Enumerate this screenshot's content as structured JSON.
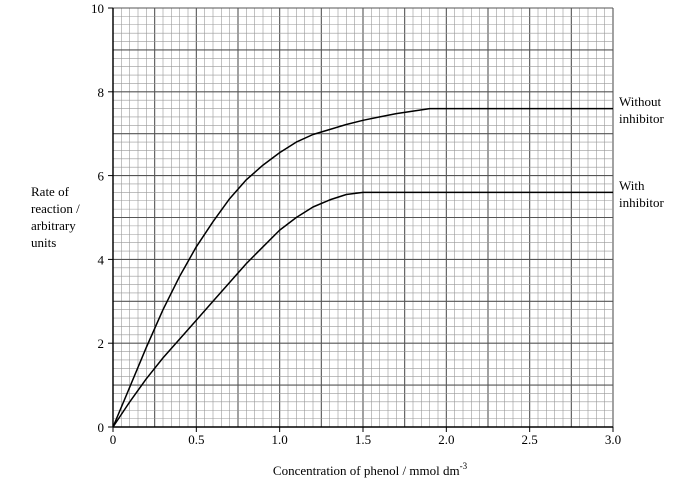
{
  "chart_data": {
    "type": "line",
    "xlabel": "Concentration of phenol / mmol dm",
    "xlabel_superscript": "-3",
    "ylabel_lines": [
      "Rate of",
      "reaction /",
      "arbitrary",
      "units"
    ],
    "xlim": [
      0,
      3.0
    ],
    "ylim": [
      0,
      10
    ],
    "x_ticks": [
      "0",
      "0.5",
      "1.0",
      "1.5",
      "2.0",
      "2.5",
      "3.0"
    ],
    "y_ticks": [
      "0",
      "2",
      "4",
      "6",
      "8",
      "10"
    ],
    "grid": true,
    "series": [
      {
        "name": "Without inhibitor",
        "label_lines": [
          "Without",
          "inhibitor"
        ],
        "x": [
          0,
          0.1,
          0.2,
          0.3,
          0.4,
          0.5,
          0.6,
          0.7,
          0.8,
          0.9,
          1.0,
          1.1,
          1.2,
          1.3,
          1.4,
          1.5,
          1.6,
          1.7,
          1.8,
          1.9,
          2.0,
          2.5,
          3.0
        ],
        "y": [
          0,
          0.95,
          1.9,
          2.8,
          3.6,
          4.3,
          4.9,
          5.45,
          5.9,
          6.25,
          6.55,
          6.8,
          6.98,
          7.1,
          7.22,
          7.32,
          7.4,
          7.48,
          7.54,
          7.6,
          7.6,
          7.6,
          7.6
        ]
      },
      {
        "name": "With inhibitor",
        "label_lines": [
          "With",
          "inhibitor"
        ],
        "x": [
          0,
          0.1,
          0.2,
          0.3,
          0.4,
          0.5,
          0.6,
          0.7,
          0.8,
          0.9,
          1.0,
          1.1,
          1.2,
          1.3,
          1.4,
          1.5,
          2.0,
          2.5,
          3.0
        ],
        "y": [
          0,
          0.6,
          1.15,
          1.65,
          2.1,
          2.55,
          3.0,
          3.45,
          3.9,
          4.3,
          4.7,
          5.0,
          5.25,
          5.42,
          5.55,
          5.6,
          5.6,
          5.6,
          5.6
        ]
      }
    ]
  }
}
